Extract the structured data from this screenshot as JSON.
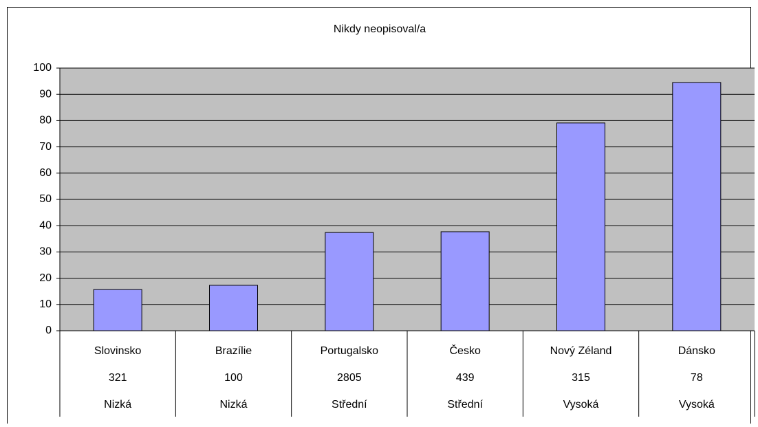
{
  "chart_data": {
    "type": "bar",
    "title": "Nikdy neopisoval/a",
    "categories": [
      "Slovinsko",
      "Brazílie",
      "Portugalsko",
      "Česko",
      "Nový Zéland",
      "Dánsko"
    ],
    "category_counts": [
      321,
      100,
      2805,
      439,
      315,
      78
    ],
    "category_levels": [
      "Nizká",
      "Nizká",
      "Střední",
      "Střední",
      "Vysoká",
      "Vysoká"
    ],
    "values": [
      15.7,
      17.3,
      37.4,
      37.7,
      79.1,
      94.5
    ],
    "color": "#9999ff",
    "plot_background": "#c0c0c0",
    "ylim": [
      0,
      100
    ],
    "yticks": [
      0,
      10,
      20,
      30,
      40,
      50,
      60,
      70,
      80,
      90,
      100
    ],
    "grid": true
  }
}
